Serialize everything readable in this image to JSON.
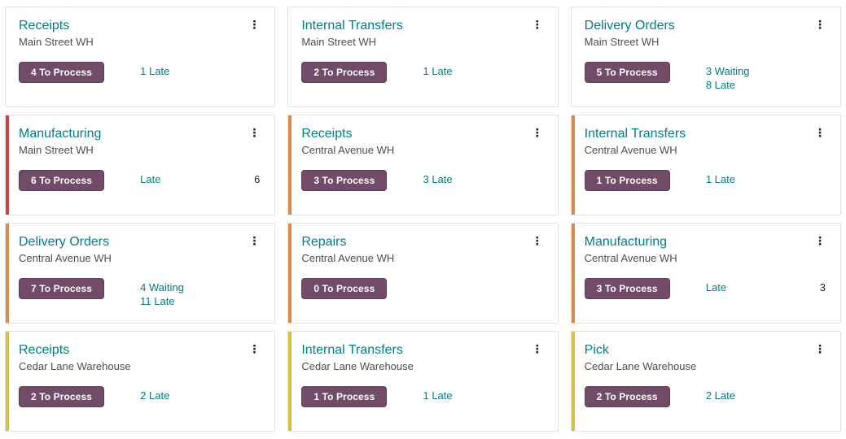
{
  "colors": {
    "accent_teal": "#017e84",
    "button_bg": "#714b67",
    "button_border": "#5d3f55",
    "button_text": "#ffffff",
    "stripe_red": "#d0423d",
    "stripe_orange": "#d98a4d",
    "stripe_yellow": "#d9bf45",
    "card_border": "#e2e4e8"
  },
  "icons": {
    "kebab_menu": "⋮"
  },
  "cards": [
    {
      "title": "Receipts",
      "warehouse": "Main Street WH",
      "button": "4 To Process",
      "stripe": "none",
      "statuses": [
        {
          "label": "1 Late"
        }
      ]
    },
    {
      "title": "Internal Transfers",
      "warehouse": "Main Street WH",
      "button": "2 To Process",
      "stripe": "none",
      "statuses": [
        {
          "label": "1 Late"
        }
      ]
    },
    {
      "title": "Delivery Orders",
      "warehouse": "Main Street WH",
      "button": "5 To Process",
      "stripe": "none",
      "statuses": [
        {
          "label": "3 Waiting"
        },
        {
          "label": "8 Late"
        }
      ]
    },
    {
      "title": "Manufacturing",
      "warehouse": "Main Street WH",
      "button": "6 To Process",
      "stripe": "red",
      "statuses": [
        {
          "label": "Late",
          "count": "6"
        }
      ]
    },
    {
      "title": "Receipts",
      "warehouse": "Central Avenue WH",
      "button": "3 To Process",
      "stripe": "orange",
      "statuses": [
        {
          "label": "3 Late"
        }
      ]
    },
    {
      "title": "Internal Transfers",
      "warehouse": "Central Avenue WH",
      "button": "1 To Process",
      "stripe": "orange",
      "statuses": [
        {
          "label": "1 Late"
        }
      ]
    },
    {
      "title": "Delivery Orders",
      "warehouse": "Central Avenue WH",
      "button": "7 To Process",
      "stripe": "orange",
      "statuses": [
        {
          "label": "4 Waiting"
        },
        {
          "label": "11 Late"
        }
      ]
    },
    {
      "title": "Repairs",
      "warehouse": "Central Avenue WH",
      "button": "0 To Process",
      "stripe": "orange",
      "statuses": []
    },
    {
      "title": "Manufacturing",
      "warehouse": "Central Avenue WH",
      "button": "3 To Process",
      "stripe": "orange",
      "statuses": [
        {
          "label": "Late",
          "count": "3"
        }
      ]
    },
    {
      "title": "Receipts",
      "warehouse": "Cedar Lane Warehouse",
      "button": "2 To Process",
      "stripe": "yellow",
      "statuses": [
        {
          "label": "2 Late"
        }
      ]
    },
    {
      "title": "Internal Transfers",
      "warehouse": "Cedar Lane Warehouse",
      "button": "1 To Process",
      "stripe": "yellow",
      "statuses": [
        {
          "label": "1 Late"
        }
      ]
    },
    {
      "title": "Pick",
      "warehouse": "Cedar Lane Warehouse",
      "button": "2 To Process",
      "stripe": "yellow",
      "statuses": [
        {
          "label": "2 Late"
        }
      ]
    }
  ]
}
